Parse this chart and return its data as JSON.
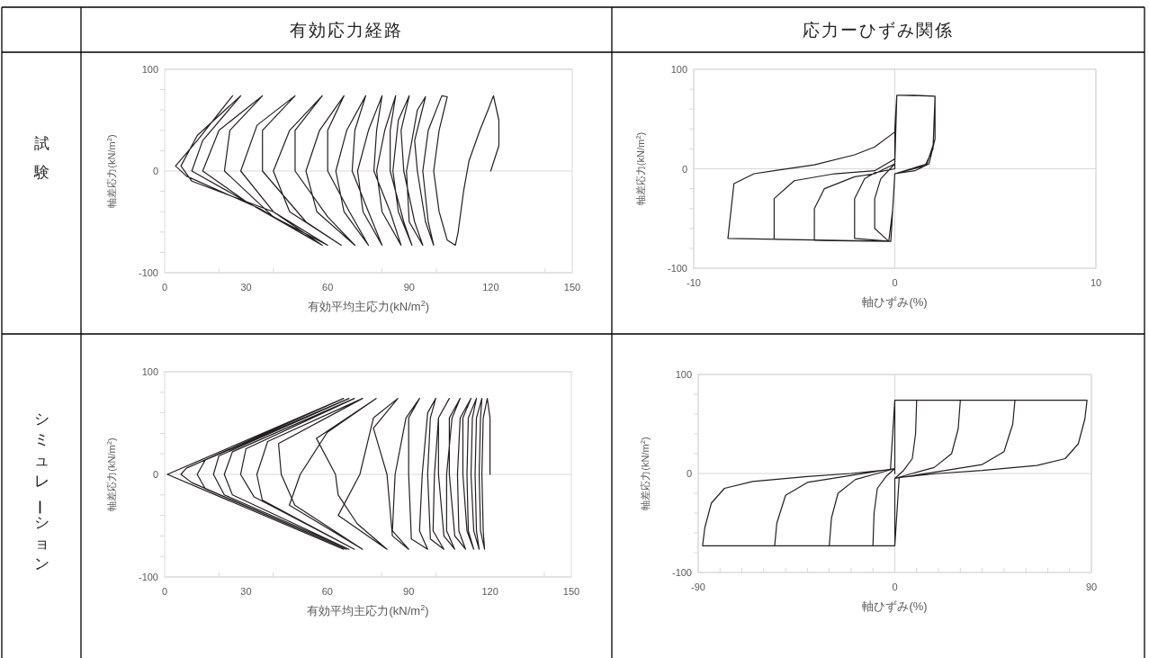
{
  "chart_data": [
    {
      "type": "line",
      "title": "有効応力経路",
      "subtitle": "試験",
      "xlabel": "有効平均主応力(kN/m$^{2}$)",
      "ylabel": "軸差応力(kN/m$^{2}$)",
      "xlim": [
        0,
        150
      ],
      "ylim": [
        -100,
        100
      ],
      "xticks": [
        0,
        {
          "value": 20,
          "label": null
        },
        30,
        {
          "value": 40,
          "label": null
        },
        60,
        {
          "value": 80,
          "label": null
        },
        90,
        {
          "value": 100,
          "label": null
        },
        120,
        {
          "value": 140,
          "label": null
        },
        150
      ],
      "yticks": [
        -100,
        {
          "value": -80,
          "label": null
        },
        {
          "value": -60,
          "label": null
        },
        {
          "value": -40,
          "label": null
        },
        {
          "value": -20,
          "label": null
        },
        0,
        {
          "value": 20,
          "label": null
        },
        {
          "value": 40,
          "label": null
        },
        {
          "value": 60,
          "label": null
        },
        {
          "value": 80,
          "label": null
        },
        100
      ],
      "grid": "y",
      "series": [
        {
          "color": "#231f20",
          "x": [
            120,
            123,
            123,
            121,
            119,
            116,
            112,
            110,
            108,
            107,
            104,
            101,
            99,
            101,
            104,
            102,
            97,
            95,
            97,
            99,
            96,
            93,
            92,
            96,
            93,
            89,
            90,
            95,
            92,
            88,
            87,
            90,
            86,
            84,
            86,
            91,
            88,
            83,
            83,
            85,
            81,
            78,
            80,
            87,
            83,
            77,
            78,
            80,
            75,
            71,
            73,
            80,
            75,
            69,
            70,
            74,
            67,
            63,
            66,
            75,
            68,
            60,
            60,
            66,
            57,
            52,
            56,
            70,
            60,
            48,
            48,
            58,
            46,
            40,
            46,
            65,
            52,
            36,
            36,
            48,
            34,
            28,
            40,
            60,
            40,
            22,
            24,
            36,
            20,
            14,
            30,
            58,
            30,
            10,
            14,
            28,
            12,
            6,
            10,
            40,
            58,
            35,
            8,
            4,
            12,
            25
          ],
          "values": [
            0,
            25,
            50,
            74,
            60,
            40,
            10,
            -20,
            -60,
            -73,
            -68,
            -40,
            0,
            40,
            73,
            74,
            40,
            0,
            -50,
            -73,
            -50,
            0,
            30,
            73,
            60,
            0,
            -50,
            -73,
            -50,
            0,
            40,
            74,
            50,
            0,
            -40,
            -73,
            -50,
            0,
            40,
            74,
            40,
            0,
            -40,
            -73,
            -40,
            0,
            40,
            74,
            40,
            0,
            -40,
            -73,
            -40,
            0,
            40,
            74,
            40,
            0,
            -40,
            -73,
            -40,
            0,
            40,
            74,
            40,
            0,
            -40,
            -73,
            -45,
            0,
            40,
            74,
            40,
            0,
            -40,
            -73,
            -50,
            0,
            40,
            74,
            45,
            0,
            -40,
            -73,
            -45,
            0,
            40,
            74,
            40,
            0,
            -30,
            -73,
            -30,
            0,
            30,
            74,
            35,
            5,
            -10,
            -40,
            -73,
            -37,
            -5,
            5,
            30,
            74
          ]
        }
      ]
    },
    {
      "type": "line",
      "title": "応力ーひずみ関係",
      "xlabel": "軸ひずみ(%)",
      "ylabel": "軸差応力(kN/m$^{2}$)",
      "xlim": [
        -10,
        10
      ],
      "ylim": [
        -100,
        100
      ],
      "xticks": [
        -10,
        0,
        10
      ],
      "yticks": [
        -100,
        {
          "value": -80,
          "label": null
        },
        {
          "value": -60,
          "label": null
        },
        {
          "value": -40,
          "label": null
        },
        {
          "value": -20,
          "label": null
        },
        0,
        {
          "value": 20,
          "label": null
        },
        {
          "value": 40,
          "label": null
        },
        {
          "value": 60,
          "label": null
        },
        {
          "value": 80,
          "label": null
        },
        100
      ],
      "grid": true,
      "series": [
        {
          "color": "#231f20",
          "x": [
            0,
            0,
            0.1,
            1,
            2,
            2,
            1.7,
            1,
            0,
            -0.1,
            -0.3,
            -1,
            -1,
            -0.7,
            0,
            0,
            0.1,
            2,
            2,
            1.6,
            0,
            -0.2,
            -2,
            -2,
            -1.5,
            -1,
            0,
            0,
            0.1,
            2,
            1.9,
            1.5,
            0,
            -0.2,
            -4,
            -4,
            -3.5,
            -2,
            -1,
            0,
            0.1,
            2,
            1.9,
            1.5,
            0,
            -0.2,
            -6,
            -6,
            -5,
            -3,
            -1,
            0,
            0.1,
            2,
            1.9,
            1.5,
            0,
            -0.2,
            -8.3,
            -8,
            -7,
            -6,
            -4,
            -2,
            -1,
            0
          ],
          "values": [
            0,
            40,
            74,
            74,
            73,
            30,
            5,
            -2,
            -5,
            -40,
            -73,
            -60,
            -30,
            -10,
            5,
            37,
            74,
            73,
            30,
            5,
            -5,
            -73,
            -70,
            -30,
            -10,
            -4,
            0,
            37,
            74,
            73,
            20,
            3,
            -5,
            -73,
            -72,
            -40,
            -20,
            -8,
            -5,
            5,
            74,
            73,
            20,
            3,
            -5,
            -73,
            -71,
            -30,
            -12,
            -5,
            -2,
            10,
            74,
            73,
            20,
            3,
            -5,
            -73,
            -70,
            -15,
            -5,
            -2,
            4,
            14,
            22,
            37
          ]
        }
      ]
    },
    {
      "type": "line",
      "subtitle": "シミュレーション",
      "xlabel": "有効平均主応力(kN/m$^{2}$)",
      "ylabel": "軸差応力(kN/m$^{2}$)",
      "xlim": [
        0,
        150
      ],
      "ylim": [
        -100,
        100
      ],
      "xticks": [
        0,
        {
          "value": 20,
          "label": null
        },
        30,
        {
          "value": 40,
          "label": null
        },
        60,
        {
          "value": 80,
          "label": null
        },
        90,
        {
          "value": 100,
          "label": null
        },
        120,
        {
          "value": 140,
          "label": null
        },
        150
      ],
      "yticks": [
        -100,
        {
          "value": -80,
          "label": null
        },
        {
          "value": -60,
          "label": null
        },
        {
          "value": -40,
          "label": null
        },
        {
          "value": -20,
          "label": null
        },
        0,
        {
          "value": 20,
          "label": null
        },
        {
          "value": 40,
          "label": null
        },
        {
          "value": 60,
          "label": null
        },
        {
          "value": 80,
          "label": null
        },
        100
      ],
      "grid": "y",
      "series": [
        {
          "color": "#231f20",
          "x": [
            120,
            120,
            119,
            117.5,
            117,
            117.5,
            118,
            116.5,
            116,
            116.5,
            117,
            115,
            114.5,
            115,
            116,
            114,
            113,
            113.5,
            115,
            112,
            111.5,
            112,
            114,
            111.5,
            110,
            110,
            113,
            109,
            108,
            108.5,
            111,
            107,
            105,
            105,
            109,
            106,
            104,
            104,
            107,
            103,
            101,
            101,
            105,
            101,
            99.5,
            99,
            103,
            98,
            97,
            98,
            100,
            97,
            95,
            94,
            97,
            91,
            90,
            90,
            94,
            89,
            85,
            84,
            90,
            84,
            82,
            77,
            86,
            77,
            72,
            64,
            82,
            71,
            64,
            63,
            56,
            78,
            60,
            50,
            46,
            73,
            48,
            43,
            42,
            73,
            38,
            34,
            36,
            70,
            33,
            28,
            30,
            70,
            25,
            22,
            25,
            68,
            22,
            18,
            20,
            68,
            15,
            12,
            15,
            67,
            10,
            6,
            8,
            66,
            1,
            66
          ],
          "values": [
            0,
            55,
            74,
            55,
            0,
            -55,
            -73,
            -55,
            0,
            55,
            74,
            55,
            0,
            -55,
            -73,
            -55,
            0,
            55,
            74,
            55,
            0,
            -55,
            -73,
            -55,
            0,
            55,
            74,
            55,
            0,
            -55,
            -73,
            -60,
            0,
            55,
            74,
            55,
            0,
            -55,
            -73,
            -60,
            0,
            55,
            74,
            55,
            0,
            -55,
            -73,
            -63,
            0,
            55,
            74,
            60,
            0,
            -55,
            -73,
            -63,
            0,
            55,
            74,
            55,
            0,
            -55,
            -73,
            -60,
            0,
            45,
            74,
            55,
            0,
            -40,
            -73,
            -48,
            -20,
            0,
            35,
            74,
            41,
            0,
            -30,
            -73,
            -30,
            0,
            30,
            74,
            32,
            0,
            -25,
            -73,
            -22,
            0,
            25,
            74,
            22,
            0,
            -20,
            -73,
            -20,
            0,
            18,
            74,
            14,
            0,
            -14,
            -73,
            -8,
            0,
            6,
            74,
            0,
            -73
          ]
        }
      ]
    },
    {
      "type": "line",
      "xlabel": "軸ひずみ(%)",
      "ylabel": "軸差応力(kN/m$^{2}$)",
      "xlim": [
        -90,
        90
      ],
      "ylim": [
        -100,
        100
      ],
      "xticks": [
        -90,
        {
          "value": -80,
          "label": null
        },
        {
          "value": -70,
          "label": null
        },
        {
          "value": -60,
          "label": null
        },
        {
          "value": -50,
          "label": null
        },
        {
          "value": -40,
          "label": null
        },
        {
          "value": -30,
          "label": null
        },
        {
          "value": -20,
          "label": null
        },
        {
          "value": -10,
          "label": null
        },
        0,
        {
          "value": 10,
          "label": null
        },
        {
          "value": 20,
          "label": null
        },
        {
          "value": 30,
          "label": null
        },
        {
          "value": 40,
          "label": null
        },
        {
          "value": 50,
          "label": null
        },
        {
          "value": 60,
          "label": null
        },
        {
          "value": 70,
          "label": null
        },
        {
          "value": 80,
          "label": null
        },
        90
      ],
      "yticks": [
        -100,
        {
          "value": -80,
          "label": null
        },
        {
          "value": -60,
          "label": null
        },
        {
          "value": -40,
          "label": null
        },
        {
          "value": -20,
          "label": null
        },
        0,
        {
          "value": 20,
          "label": null
        },
        {
          "value": 40,
          "label": null
        },
        {
          "value": 60,
          "label": null
        },
        {
          "value": 80,
          "label": null
        },
        100
      ],
      "grid": true,
      "series": [
        {
          "color": "#231f20",
          "x": [
            0,
            0,
            10,
            9.5,
            8,
            4,
            0,
            0,
            -10,
            -9.5,
            -8,
            -4,
            0,
            0,
            30,
            29,
            26,
            18,
            8,
            0,
            0,
            -30,
            -29,
            -26,
            -18,
            -8,
            0,
            0,
            55,
            54,
            50,
            40,
            20,
            0,
            0,
            -55,
            -54,
            -50,
            -40,
            -20,
            0,
            0,
            88,
            87,
            84,
            78,
            65,
            40,
            20,
            2,
            0,
            -88,
            -87,
            -84,
            -78,
            -65,
            -40,
            -20,
            -2,
            0
          ],
          "values": [
            0,
            74,
            74,
            40,
            15,
            3,
            -5,
            -73,
            -73,
            -40,
            -15,
            -3,
            5,
            74,
            74,
            45,
            20,
            6,
            0,
            -5,
            -73,
            -73,
            -45,
            -20,
            -6,
            0,
            5,
            74,
            74,
            50,
            22,
            9,
            2,
            -5,
            -73,
            -73,
            -50,
            -22,
            -9,
            -2,
            5,
            74,
            74,
            55,
            30,
            15,
            8,
            3,
            0,
            -4,
            -73,
            -73,
            -55,
            -30,
            -15,
            -8,
            -3,
            0,
            4,
            74
          ]
        }
      ]
    }
  ]
}
